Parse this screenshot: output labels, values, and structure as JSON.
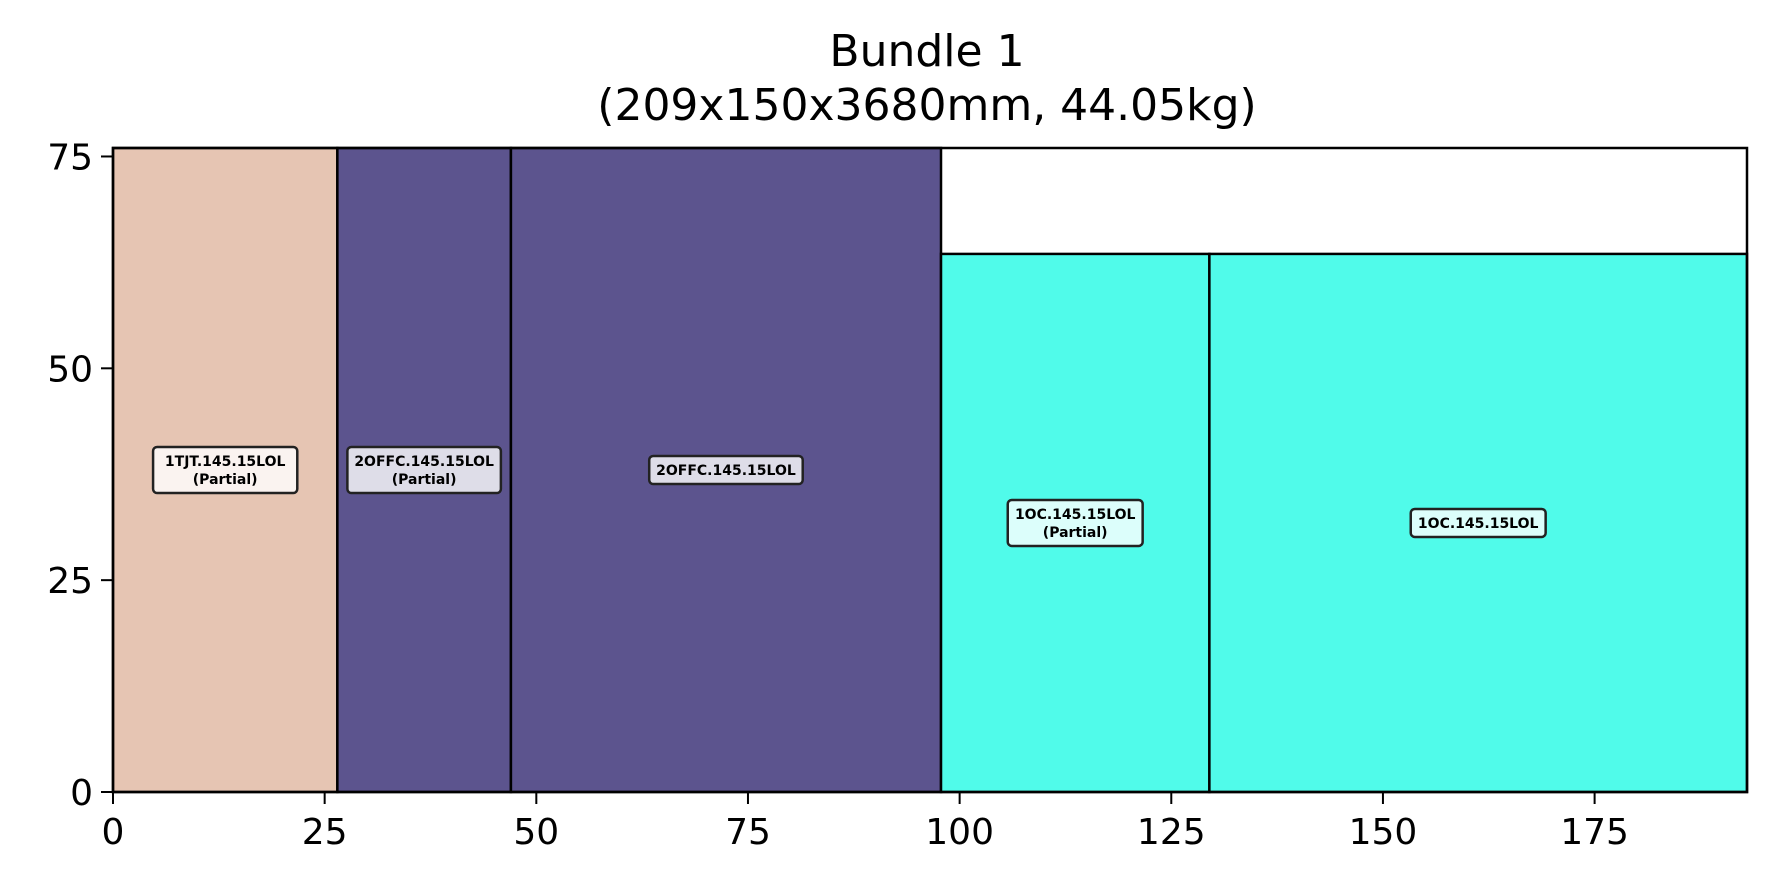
{
  "chart_data": {
    "type": "rectangle-packing",
    "title": "Bundle 1",
    "subtitle": "(209x150x3680mm, 44.05kg)",
    "xlim": [
      0,
      193
    ],
    "ylim": [
      0,
      76
    ],
    "x_ticks": [
      0,
      25,
      50,
      75,
      100,
      125,
      150,
      175
    ],
    "y_ticks": [
      0,
      25,
      50,
      75
    ],
    "rectangles": [
      {
        "x": 0,
        "y": 0,
        "w": 26.5,
        "h": 76,
        "color": "#e6c5b3",
        "label": "1TJT.145.15LOL",
        "sublabel": "(Partial)"
      },
      {
        "x": 26.5,
        "y": 0,
        "w": 20.5,
        "h": 76,
        "color": "#5c548e",
        "label": "2OFFC.145.15LOL",
        "sublabel": "(Partial)"
      },
      {
        "x": 47,
        "y": 0,
        "w": 50.8,
        "h": 76,
        "color": "#5c548e",
        "label": "2OFFC.145.15LOL",
        "sublabel": ""
      },
      {
        "x": 97.8,
        "y": 0,
        "w": 31.7,
        "h": 63.5,
        "color": "#50fbea",
        "label": "1OC.145.15LOL",
        "sublabel": "(Partial)"
      },
      {
        "x": 129.5,
        "y": 0,
        "w": 63.5,
        "h": 63.5,
        "color": "#50fbea",
        "label": "1OC.145.15LOL",
        "sublabel": ""
      }
    ]
  }
}
